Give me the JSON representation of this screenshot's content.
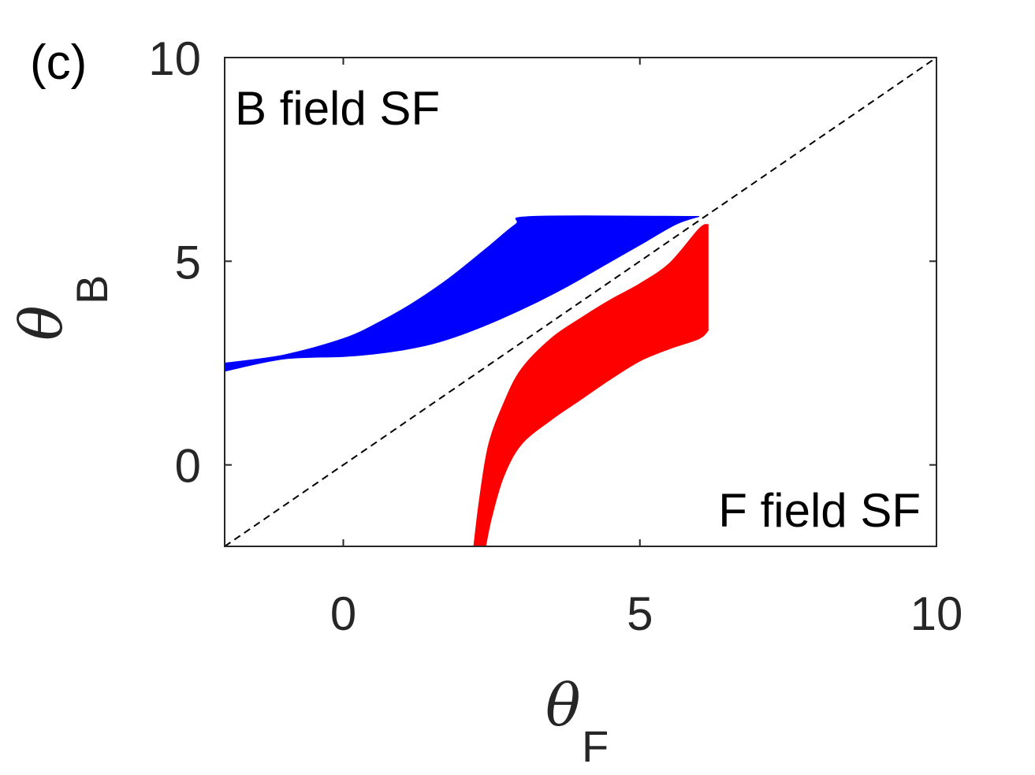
{
  "chart_data": {
    "type": "area",
    "panel_label": "(c)",
    "xlabel": {
      "symbol": "θ",
      "subscript": "F"
    },
    "ylabel": {
      "symbol": "θ",
      "subscript": "B"
    },
    "xlim": [
      -2,
      10
    ],
    "ylim": [
      -2,
      10
    ],
    "xticks": [
      0,
      5,
      10
    ],
    "yticks": [
      0,
      5,
      10
    ],
    "annotations": [
      {
        "text": "B field SF",
        "position": "top-left"
      },
      {
        "text": "F field SF",
        "position": "bottom-right"
      }
    ],
    "reference_line": {
      "style": "dashed",
      "color": "#000000",
      "points": [
        [
          -2,
          -2
        ],
        [
          10,
          10
        ]
      ]
    },
    "series": [
      {
        "color": "#0000ff",
        "upper": [
          [
            -2,
            2.5
          ],
          [
            -1,
            2.7
          ],
          [
            0,
            3.1
          ],
          [
            0.6,
            3.5
          ],
          [
            1.2,
            4.0
          ],
          [
            1.8,
            4.6
          ],
          [
            2.4,
            5.3
          ],
          [
            2.9,
            5.9
          ],
          [
            3.2,
            6.1
          ],
          [
            6.0,
            6.1
          ]
        ],
        "lower": [
          [
            6.0,
            6.1
          ],
          [
            5.6,
            5.9
          ],
          [
            5.0,
            5.4
          ],
          [
            4.4,
            4.9
          ],
          [
            3.8,
            4.4
          ],
          [
            3.2,
            3.95
          ],
          [
            2.6,
            3.55
          ],
          [
            2.0,
            3.2
          ],
          [
            1.5,
            2.97
          ],
          [
            1.0,
            2.82
          ],
          [
            0.5,
            2.72
          ],
          [
            0,
            2.66
          ],
          [
            -1,
            2.6
          ],
          [
            -2,
            2.3
          ]
        ]
      },
      {
        "color": "#ff0000",
        "upper": [
          [
            2.2,
            -2
          ],
          [
            2.3,
            -0.8
          ],
          [
            2.45,
            0.5
          ],
          [
            2.7,
            1.5
          ],
          [
            3.0,
            2.35
          ],
          [
            3.5,
            3.1
          ],
          [
            4.0,
            3.6
          ],
          [
            4.5,
            4.05
          ],
          [
            5.0,
            4.45
          ],
          [
            5.5,
            4.95
          ],
          [
            6.0,
            5.8
          ],
          [
            6.15,
            5.9
          ]
        ],
        "lower": [
          [
            6.15,
            3.3
          ],
          [
            6.0,
            3.1
          ],
          [
            5.5,
            2.85
          ],
          [
            5.0,
            2.55
          ],
          [
            4.5,
            2.1
          ],
          [
            4.0,
            1.6
          ],
          [
            3.5,
            1.1
          ],
          [
            3.0,
            0.5
          ],
          [
            2.7,
            -0.3
          ],
          [
            2.5,
            -1.3
          ],
          [
            2.4,
            -2
          ]
        ]
      }
    ]
  }
}
